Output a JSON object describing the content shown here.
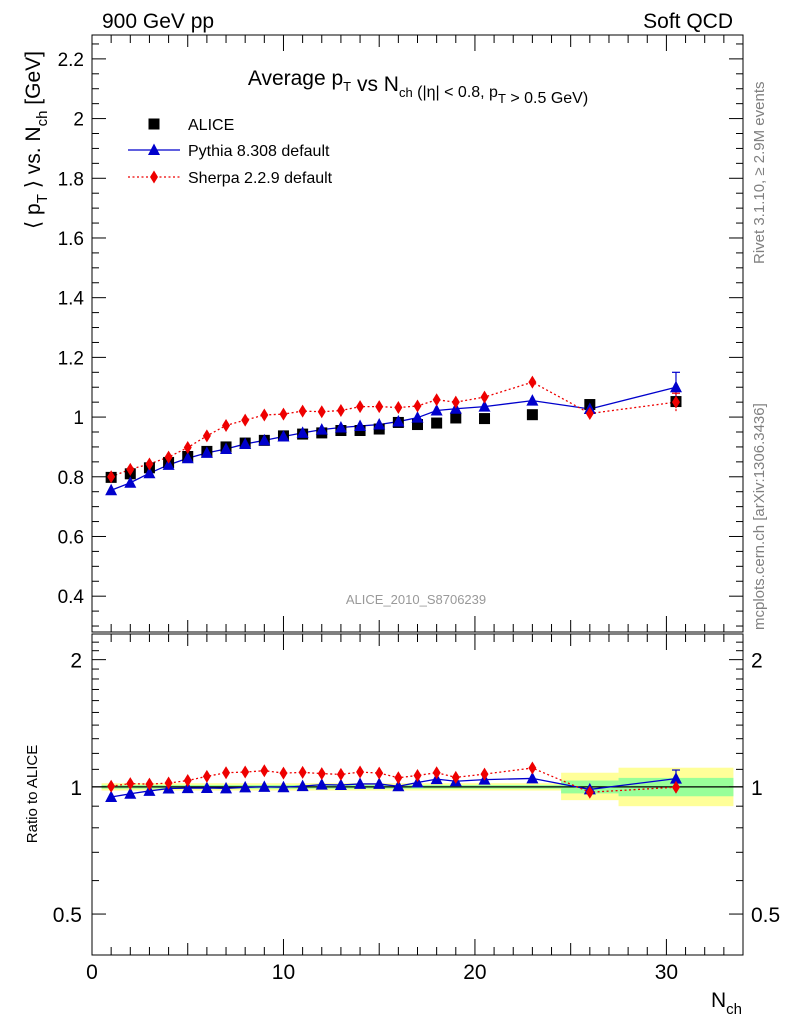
{
  "header": {
    "left": "900 GeV pp",
    "right": "Soft QCD"
  },
  "side_labels": {
    "top": "Rivet 3.1.10, ≥ 2.9M events",
    "bottom": "mcplots.cern.ch [arXiv:1306.3436]"
  },
  "chart_data": [
    {
      "type": "scatter",
      "title": {
        "parts": [
          {
            "t": "Average p",
            "sub": "T"
          },
          {
            "t": " vs N",
            "sub": "ch"
          },
          {
            "small": " (|η| < 0.8, p",
            "sub": "T",
            "small_after": " > 0.5 GeV)"
          }
        ]
      },
      "ylabel": {
        "a": "⟨ p",
        "sub1": "T",
        "b": " ⟩ vs. N",
        "sub2": "ch",
        "c": " [GeV]"
      },
      "watermark": "ALICE_2010_S8706239",
      "xlim": [
        0,
        34
      ],
      "ylim": [
        0.28,
        2.28
      ],
      "yticks": [
        0.4,
        0.6,
        0.8,
        1.0,
        1.2,
        1.4,
        1.6,
        1.8,
        2.0,
        2.2
      ],
      "ytick_labels": [
        "0.4",
        "0.6",
        "0.8",
        "1",
        "1.2",
        "1.4",
        "1.6",
        "1.8",
        "2",
        "2.2"
      ],
      "legend": {
        "position": "top-left",
        "entries": [
          "ALICE",
          "Pythia 8.308 default",
          "Sherpa 2.2.9 default"
        ]
      },
      "series": [
        {
          "name": "ALICE",
          "color": "#000000",
          "marker": "square",
          "x": [
            1,
            2,
            3,
            4,
            5,
            6,
            7,
            8,
            9,
            10,
            11,
            12,
            13,
            14,
            15,
            16,
            17,
            18,
            19,
            20.5,
            23,
            26,
            30.5
          ],
          "y": [
            0.798,
            0.81,
            0.83,
            0.848,
            0.868,
            0.885,
            0.9,
            0.913,
            0.922,
            0.937,
            0.943,
            0.947,
            0.955,
            0.955,
            0.96,
            0.982,
            0.975,
            0.98,
            0.997,
            0.995,
            1.008,
            1.042,
            1.052
          ]
        },
        {
          "name": "Pythia 8.308 default",
          "color": "#0000cc",
          "marker": "triangle",
          "line": "solid",
          "x": [
            1,
            2,
            3,
            4,
            5,
            6,
            7,
            8,
            9,
            10,
            11,
            12,
            13,
            14,
            15,
            16,
            17,
            18,
            19,
            20.5,
            23,
            26,
            30.5
          ],
          "y": [
            0.755,
            0.78,
            0.812,
            0.84,
            0.862,
            0.88,
            0.893,
            0.91,
            0.922,
            0.935,
            0.947,
            0.958,
            0.965,
            0.97,
            0.975,
            0.985,
            0.998,
            1.022,
            1.028,
            1.035,
            1.055,
            1.027,
            1.1
          ],
          "yerr_last": 0.05
        },
        {
          "name": "Sherpa 2.2.9 default",
          "color": "#ee0000",
          "marker": "diamond",
          "line": "dotted",
          "x": [
            1,
            2,
            3,
            4,
            5,
            6,
            7,
            8,
            9,
            10,
            11,
            12,
            13,
            14,
            15,
            16,
            17,
            18,
            19,
            20.5,
            23,
            26,
            30.5
          ],
          "y": [
            0.8,
            0.825,
            0.843,
            0.866,
            0.898,
            0.937,
            0.972,
            0.99,
            1.007,
            1.01,
            1.02,
            1.018,
            1.022,
            1.035,
            1.035,
            1.032,
            1.037,
            1.058,
            1.05,
            1.067,
            1.117,
            1.012,
            1.05
          ],
          "yerr_last": 0.03
        }
      ]
    },
    {
      "type": "scatter",
      "ylabel": "Ratio to ALICE",
      "xlabel": {
        "t": "N",
        "sub": "ch"
      },
      "xlim": [
        0,
        34
      ],
      "xticks": [
        0,
        10,
        20,
        30
      ],
      "xtick_labels": [
        "0",
        "10",
        "20",
        "30"
      ],
      "ylim": [
        0.4,
        2.3
      ],
      "ylog": true,
      "yticks": [
        0.5,
        1,
        2
      ],
      "ytick_labels": [
        "0.5",
        "1",
        "2"
      ],
      "bands": [
        {
          "x": [
            0.5,
            24.5
          ],
          "yellow": [
            0.98,
            1.02
          ],
          "green": [
            0.99,
            1.01
          ]
        },
        {
          "x": [
            24.5,
            27.5
          ],
          "yellow": [
            0.93,
            1.08
          ],
          "green": [
            0.965,
            1.035
          ]
        },
        {
          "x": [
            27.5,
            33.5
          ],
          "yellow": [
            0.9,
            1.11
          ],
          "green": [
            0.95,
            1.05
          ]
        }
      ],
      "series": [
        {
          "name": "Pythia 8.308 default",
          "color": "#0000cc",
          "marker": "triangle",
          "line": "solid",
          "x": [
            1,
            2,
            3,
            4,
            5,
            6,
            7,
            8,
            9,
            10,
            11,
            12,
            13,
            14,
            15,
            16,
            17,
            18,
            19,
            20.5,
            23,
            26,
            30.5
          ],
          "y": [
            0.946,
            0.963,
            0.978,
            0.991,
            0.993,
            0.994,
            0.992,
            0.997,
            1.0,
            0.998,
            1.004,
            1.012,
            1.01,
            1.016,
            1.016,
            1.003,
            1.024,
            1.043,
            1.031,
            1.04,
            1.047,
            0.986,
            1.046
          ],
          "yerr_last": 0.05
        },
        {
          "name": "Sherpa 2.2.9 default",
          "color": "#ee0000",
          "marker": "diamond",
          "line": "dotted",
          "x": [
            1,
            2,
            3,
            4,
            5,
            6,
            7,
            8,
            9,
            10,
            11,
            12,
            13,
            14,
            15,
            16,
            17,
            18,
            19,
            20.5,
            23,
            26,
            30.5
          ],
          "y": [
            1.003,
            1.018,
            1.015,
            1.021,
            1.035,
            1.059,
            1.08,
            1.084,
            1.092,
            1.078,
            1.082,
            1.075,
            1.07,
            1.084,
            1.078,
            1.051,
            1.064,
            1.08,
            1.053,
            1.072,
            1.108,
            0.971,
            0.998
          ],
          "yerr_last": 0.03
        }
      ]
    }
  ]
}
